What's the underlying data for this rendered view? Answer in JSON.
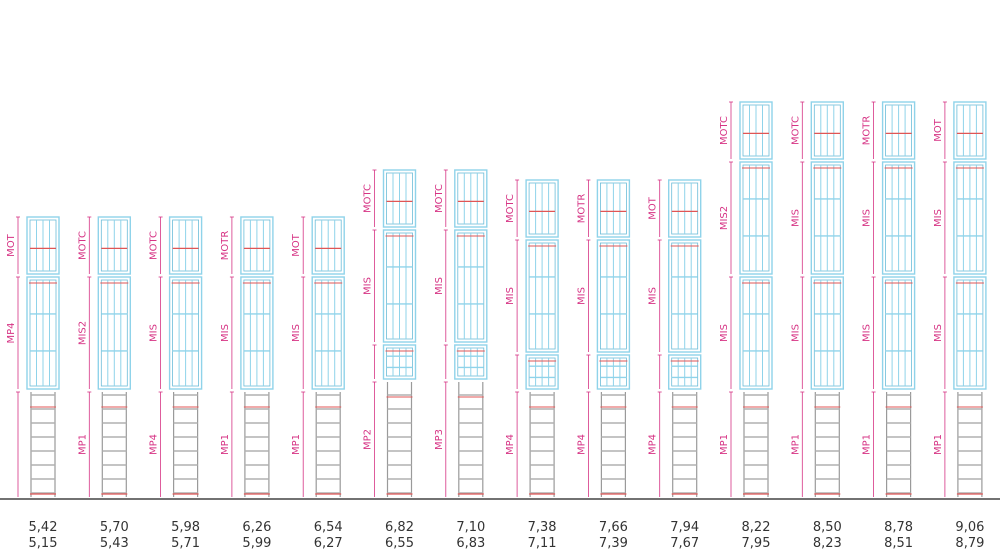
{
  "colors": {
    "cage": "#8fd3ea",
    "cage_dark": "#6bbcd8",
    "ladder": "#9a9a9a",
    "rung": "#b0b0b0",
    "accent": "#e05555",
    "dimension": "#d63384",
    "ground": "#444444",
    "text": "#333333"
  },
  "ladders": [
    {
      "top": "5,42",
      "bottom": "5,15",
      "segments": [
        {
          "type": "cage",
          "code": "MOT",
          "top": true
        },
        {
          "type": "cage",
          "code": "MP4",
          "top": false
        },
        {
          "type": "ladder",
          "code": ""
        }
      ]
    },
    {
      "top": "5,70",
      "bottom": "5,43",
      "segments": [
        {
          "type": "cage",
          "code": "MOTC",
          "top": true
        },
        {
          "type": "cage",
          "code": "MIS2",
          "top": false
        },
        {
          "type": "ladder",
          "code": "MP1"
        }
      ]
    },
    {
      "top": "5,98",
      "bottom": "5,71",
      "segments": [
        {
          "type": "cage",
          "code": "MOTC",
          "top": true
        },
        {
          "type": "cage",
          "code": "MIS",
          "top": false
        },
        {
          "type": "ladder",
          "code": "MP4"
        }
      ]
    },
    {
      "top": "6,26",
      "bottom": "5,99",
      "segments": [
        {
          "type": "cage",
          "code": "MOTR",
          "top": true
        },
        {
          "type": "cage",
          "code": "MIS",
          "top": false
        },
        {
          "type": "ladder",
          "code": "MP1"
        }
      ]
    },
    {
      "top": "6,54",
      "bottom": "6,27",
      "segments": [
        {
          "type": "cage",
          "code": "MOT",
          "top": true
        },
        {
          "type": "cage",
          "code": "MIS",
          "top": false
        },
        {
          "type": "ladder",
          "code": "MP1"
        }
      ]
    },
    {
      "top": "6,82",
      "bottom": "6,55",
      "segments": [
        {
          "type": "cage",
          "code": "MOTC",
          "top": true
        },
        {
          "type": "cage",
          "code": "MIS",
          "top": false
        },
        {
          "type": "cage",
          "code": "",
          "top": false
        },
        {
          "type": "ladder",
          "code": "MP2"
        }
      ]
    },
    {
      "top": "7,10",
      "bottom": "6,83",
      "segments": [
        {
          "type": "cage",
          "code": "MOTC",
          "top": true
        },
        {
          "type": "cage",
          "code": "MIS",
          "top": false
        },
        {
          "type": "cage",
          "code": "",
          "top": false
        },
        {
          "type": "ladder",
          "code": "MP3"
        }
      ]
    },
    {
      "top": "7,38",
      "bottom": "7,11",
      "segments": [
        {
          "type": "cage",
          "code": "MOTC",
          "top": true
        },
        {
          "type": "cage",
          "code": "MIS",
          "top": false
        },
        {
          "type": "cage",
          "code": "",
          "top": false
        },
        {
          "type": "ladder",
          "code": "MP4"
        }
      ]
    },
    {
      "top": "7,66",
      "bottom": "7,39",
      "segments": [
        {
          "type": "cage",
          "code": "MOTR",
          "top": true
        },
        {
          "type": "cage",
          "code": "MIS",
          "top": false
        },
        {
          "type": "cage",
          "code": "",
          "top": false
        },
        {
          "type": "ladder",
          "code": "MP4"
        }
      ]
    },
    {
      "top": "7,94",
      "bottom": "7,67",
      "segments": [
        {
          "type": "cage",
          "code": "MOT",
          "top": true
        },
        {
          "type": "cage",
          "code": "MIS",
          "top": false
        },
        {
          "type": "cage",
          "code": "",
          "top": false
        },
        {
          "type": "ladder",
          "code": "MP4"
        }
      ]
    },
    {
      "top": "8,22",
      "bottom": "7,95",
      "segments": [
        {
          "type": "cage",
          "code": "MOTC",
          "top": true
        },
        {
          "type": "cage",
          "code": "MIS2",
          "top": false
        },
        {
          "type": "cage",
          "code": "MIS",
          "top": false
        },
        {
          "type": "ladder",
          "code": "MP1"
        }
      ]
    },
    {
      "top": "8,50",
      "bottom": "8,23",
      "segments": [
        {
          "type": "cage",
          "code": "MOTC",
          "top": true
        },
        {
          "type": "cage",
          "code": "MIS",
          "top": false
        },
        {
          "type": "cage",
          "code": "MIS",
          "top": false
        },
        {
          "type": "ladder",
          "code": "MP1"
        }
      ]
    },
    {
      "top": "8,78",
      "bottom": "8,51",
      "segments": [
        {
          "type": "cage",
          "code": "MOTR",
          "top": true
        },
        {
          "type": "cage",
          "code": "MIS",
          "top": false
        },
        {
          "type": "cage",
          "code": "MIS",
          "top": false
        },
        {
          "type": "ladder",
          "code": "MP1"
        }
      ]
    },
    {
      "top": "9,06",
      "bottom": "8,79",
      "segments": [
        {
          "type": "cage",
          "code": "MOT",
          "top": true
        },
        {
          "type": "cage",
          "code": "MIS",
          "top": false
        },
        {
          "type": "cage",
          "code": "MIS",
          "top": false
        },
        {
          "type": "ladder",
          "code": "MP1"
        }
      ]
    }
  ]
}
